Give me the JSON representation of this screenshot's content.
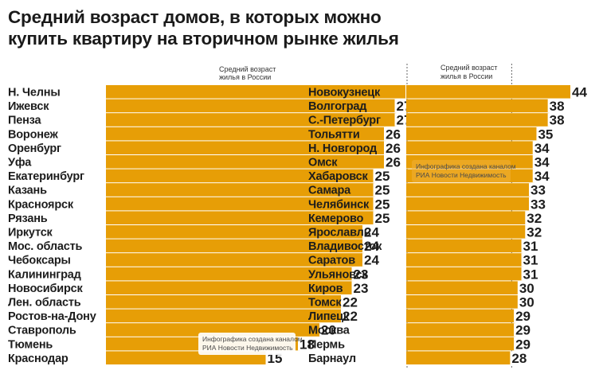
{
  "title_line1": "Средний возраст домов, в которых можно",
  "title_line2": "купить квартиру на вторичном рынке жилья",
  "reference_label_line1": "Средний возраст",
  "reference_label_line2": "жилья в России",
  "watermark_line1": "Инфографика создана каналом",
  "watermark_line2": "РИА Новости Недвижимость",
  "colors": {
    "bar": "#E79E06",
    "value_box": "#ffffff",
    "reference_line": "#666666"
  },
  "chart_data": [
    {
      "type": "bar",
      "orientation": "horizontal",
      "reference_value": 28,
      "categories": [
        "Н. Челны",
        "Ижевск",
        "Пенза",
        "Воронеж",
        "Оренбург",
        "Уфа",
        "Екатеринбург",
        "Казань",
        "Красноярск",
        "Рязань",
        "Иркутск",
        "Мос. область",
        "Чебоксары",
        "Калининград",
        "Новосибирск",
        "Лен. область",
        "Ростов-на-Дону",
        "Ставрополь",
        "Тюмень",
        "Краснодар"
      ],
      "values": [
        28,
        27,
        27,
        26,
        26,
        26,
        25,
        25,
        25,
        25,
        24,
        24,
        24,
        23,
        23,
        22,
        22,
        20,
        18,
        15
      ]
    },
    {
      "type": "bar",
      "orientation": "horizontal",
      "reference_value": 28,
      "categories": [
        "Новокузнецк",
        "Волгоград",
        "С.-Петербург",
        "Тольятти",
        "Н. Новгород",
        "Омск",
        "Хабаровск",
        "Самара",
        "Челябинск",
        "Кемерово",
        "Ярославль",
        "Владивосток",
        "Саратов",
        "Ульяновск",
        "Киров",
        "Томск",
        "Липецк",
        "Москва",
        "Пермь",
        "Барнаул"
      ],
      "values": [
        44,
        38,
        38,
        35,
        34,
        34,
        34,
        33,
        33,
        32,
        32,
        31,
        31,
        31,
        30,
        30,
        29,
        29,
        29,
        28
      ]
    }
  ]
}
